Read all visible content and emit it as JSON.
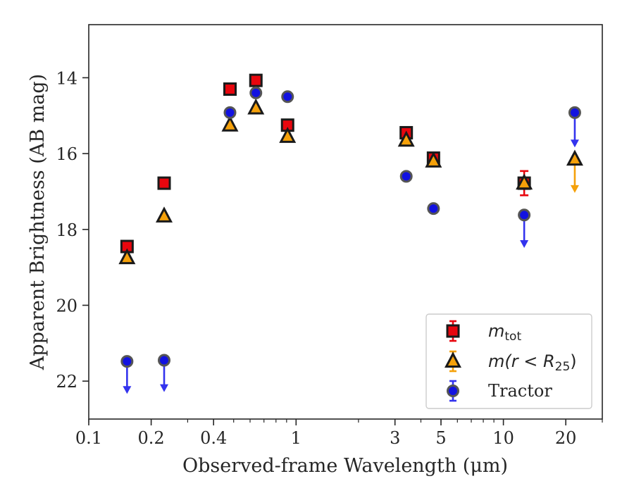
{
  "chart_data": {
    "type": "scatter",
    "xlabel": "Observed-frame Wavelength (μm)",
    "ylabel": "Apparent Brightness (AB mag)",
    "xscale": "log",
    "xlim": [
      0.1,
      30
    ],
    "ylim": [
      23.0,
      12.6
    ],
    "y_inverted": true,
    "xticks": [
      {
        "value": 0.1,
        "label": "0.1"
      },
      {
        "value": 0.2,
        "label": "0.2"
      },
      {
        "value": 0.4,
        "label": "0.4"
      },
      {
        "value": 1,
        "label": "1"
      },
      {
        "value": 3,
        "label": "3"
      },
      {
        "value": 5,
        "label": "5"
      },
      {
        "value": 10,
        "label": "10"
      },
      {
        "value": 20,
        "label": "20"
      }
    ],
    "yticks": [
      {
        "value": 14,
        "label": "14"
      },
      {
        "value": 16,
        "label": "16"
      },
      {
        "value": 18,
        "label": "18"
      },
      {
        "value": 20,
        "label": "20"
      },
      {
        "value": 22,
        "label": "22"
      }
    ],
    "legend_position": "lower-right",
    "series": [
      {
        "key": "mtot",
        "legend_main": "m",
        "legend_sub": "tot",
        "marker": "square",
        "color": "#e8060e",
        "edge": "#1a1a1a",
        "errcolor": "#e8060e",
        "points": [
          {
            "x": 0.153,
            "y": 18.45
          },
          {
            "x": 0.231,
            "y": 16.78
          },
          {
            "x": 0.48,
            "y": 14.3
          },
          {
            "x": 0.64,
            "y": 14.07
          },
          {
            "x": 0.91,
            "y": 15.25
          },
          {
            "x": 3.4,
            "y": 15.45
          },
          {
            "x": 4.6,
            "y": 16.12
          },
          {
            "x": 12.6,
            "y": 16.78,
            "err": 0.32
          }
        ]
      },
      {
        "key": "mr25",
        "legend_prefix": "m(r < R",
        "legend_sub": "25",
        "legend_suffix": ")",
        "marker": "triangle",
        "color": "#f5a10a",
        "edge": "#1a1a1a",
        "errcolor": "#f5a10a",
        "points": [
          {
            "x": 0.153,
            "y": 18.75
          },
          {
            "x": 0.231,
            "y": 17.65
          },
          {
            "x": 0.48,
            "y": 15.25
          },
          {
            "x": 0.64,
            "y": 14.8
          },
          {
            "x": 0.91,
            "y": 15.55
          },
          {
            "x": 3.4,
            "y": 15.65
          },
          {
            "x": 4.6,
            "y": 16.2
          },
          {
            "x": 12.6,
            "y": 16.78
          },
          {
            "x": 22.1,
            "y": 16.15,
            "upper_limit": true,
            "limit_to": 17.0
          }
        ]
      },
      {
        "key": "tractor",
        "legend_label": "Tractor",
        "marker": "circle",
        "color": "#1212e0",
        "edge": "#555555",
        "errcolor": "#3333ee",
        "points": [
          {
            "x": 0.153,
            "y": 21.48,
            "upper_limit": true,
            "limit_to": 22.3
          },
          {
            "x": 0.231,
            "y": 21.45,
            "upper_limit": true,
            "limit_to": 22.25
          },
          {
            "x": 0.48,
            "y": 14.92
          },
          {
            "x": 0.64,
            "y": 14.4
          },
          {
            "x": 0.91,
            "y": 14.5
          },
          {
            "x": 3.4,
            "y": 16.6
          },
          {
            "x": 4.6,
            "y": 17.45
          },
          {
            "x": 12.6,
            "y": 17.62,
            "upper_limit": true,
            "limit_to": 18.45
          },
          {
            "x": 22.1,
            "y": 14.92,
            "upper_limit": true,
            "limit_to": 15.8
          }
        ]
      }
    ]
  }
}
